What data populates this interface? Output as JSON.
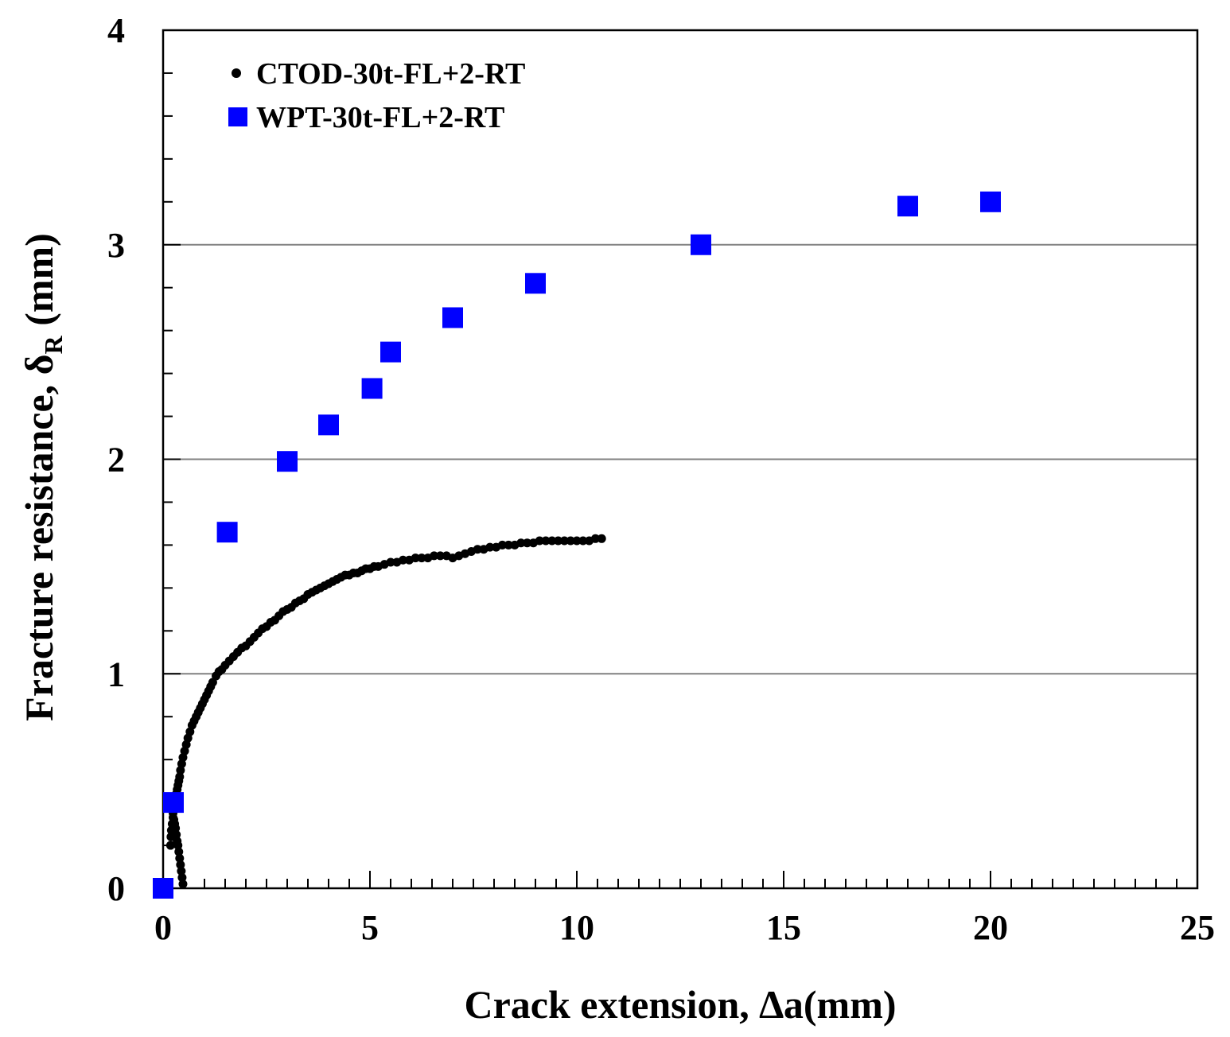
{
  "chart_data": {
    "type": "scatter",
    "title": "",
    "xlabel": "Crack extension, ∆a(mm)",
    "ylabel_main": "Fracture resistance, δ",
    "ylabel_sub": "R",
    "ylabel_unit": " (mm)",
    "xlim": [
      0,
      25
    ],
    "ylim": [
      0,
      4
    ],
    "x_ticks": [
      "0",
      "5",
      "10",
      "15",
      "20",
      "25"
    ],
    "y_ticks": [
      "0",
      "1",
      "2",
      "3",
      "4"
    ],
    "grid": "horizontal at y = 1, 2, 3",
    "legend_position": "top-left",
    "series": [
      {
        "name": "CTOD-30t-FL+2-RT",
        "marker": "circle",
        "color": "#000000",
        "x": [
          0.48,
          0.46,
          0.44,
          0.42,
          0.4,
          0.38,
          0.36,
          0.34,
          0.32,
          0.3,
          0.28,
          0.26,
          0.24,
          0.22,
          0.2,
          0.18,
          0.18,
          0.19,
          0.2,
          0.22,
          0.24,
          0.25,
          0.26,
          0.28,
          0.3,
          0.32,
          0.34,
          0.36,
          0.38,
          0.4,
          0.42,
          0.45,
          0.48,
          0.52,
          0.56,
          0.6,
          0.65,
          0.7,
          0.75,
          0.8,
          0.85,
          0.9,
          0.95,
          1.0,
          1.05,
          1.1,
          1.15,
          1.2,
          1.28,
          1.35,
          1.42,
          1.5,
          1.6,
          1.7,
          1.8,
          1.9,
          2.0,
          2.1,
          2.2,
          2.3,
          2.4,
          2.5,
          2.6,
          2.7,
          2.8,
          2.9,
          3.0,
          3.1,
          3.2,
          3.3,
          3.4,
          3.5,
          3.6,
          3.7,
          3.8,
          3.9,
          4.0,
          4.1,
          4.2,
          4.3,
          4.4,
          4.5,
          4.6,
          4.7,
          4.8,
          4.9,
          5.0,
          5.1,
          5.2,
          5.35,
          5.5,
          5.65,
          5.8,
          5.95,
          6.1,
          6.25,
          6.4,
          6.55,
          6.7,
          6.85,
          7.0,
          7.15,
          7.3,
          7.45,
          7.6,
          7.75,
          7.9,
          8.05,
          8.2,
          8.35,
          8.5,
          8.65,
          8.8,
          8.95,
          9.1,
          9.25,
          9.4,
          9.55,
          9.7,
          9.85,
          10.0,
          10.15,
          10.3,
          10.45,
          10.6
        ],
        "y": [
          0.02,
          0.05,
          0.08,
          0.11,
          0.14,
          0.17,
          0.2,
          0.22,
          0.25,
          0.28,
          0.3,
          0.32,
          0.35,
          0.37,
          0.4,
          0.42,
          0.2,
          0.24,
          0.27,
          0.3,
          0.33,
          0.36,
          0.38,
          0.4,
          0.42,
          0.44,
          0.46,
          0.48,
          0.5,
          0.52,
          0.55,
          0.58,
          0.61,
          0.64,
          0.67,
          0.7,
          0.73,
          0.76,
          0.78,
          0.8,
          0.82,
          0.84,
          0.86,
          0.88,
          0.9,
          0.92,
          0.94,
          0.96,
          0.99,
          1.01,
          1.02,
          1.04,
          1.06,
          1.08,
          1.1,
          1.12,
          1.13,
          1.15,
          1.17,
          1.19,
          1.21,
          1.22,
          1.24,
          1.25,
          1.27,
          1.29,
          1.3,
          1.31,
          1.33,
          1.34,
          1.35,
          1.37,
          1.38,
          1.39,
          1.4,
          1.41,
          1.42,
          1.43,
          1.44,
          1.45,
          1.46,
          1.46,
          1.47,
          1.47,
          1.48,
          1.49,
          1.49,
          1.5,
          1.5,
          1.51,
          1.52,
          1.52,
          1.53,
          1.53,
          1.54,
          1.54,
          1.54,
          1.55,
          1.55,
          1.55,
          1.54,
          1.55,
          1.56,
          1.57,
          1.58,
          1.58,
          1.59,
          1.59,
          1.6,
          1.6,
          1.6,
          1.61,
          1.61,
          1.61,
          1.62,
          1.62,
          1.62,
          1.62,
          1.62,
          1.62,
          1.62,
          1.62,
          1.62,
          1.63,
          1.63
        ]
      },
      {
        "name": "WPT-30t-FL+2-RT",
        "marker": "square",
        "color": "#0000ff",
        "x": [
          0,
          0.25,
          1.55,
          3.0,
          4.0,
          5.05,
          5.5,
          7.0,
          9.0,
          13.0,
          18.0,
          20.0
        ],
        "y": [
          0,
          0.4,
          1.66,
          1.99,
          2.16,
          2.33,
          2.5,
          2.66,
          2.82,
          3.0,
          3.18,
          3.2
        ]
      }
    ]
  }
}
